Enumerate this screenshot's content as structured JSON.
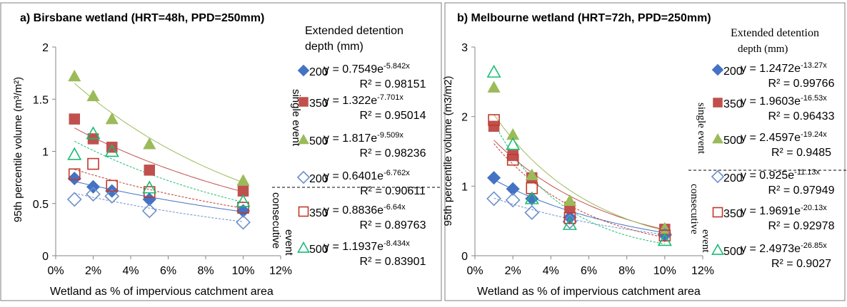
{
  "chart_data": [
    {
      "panel": "a",
      "type": "scatter",
      "title": "a) Birsbane wetland (HRT=48h, PPD=250mm)",
      "xlabel": "Wetland as % of impervious catchment area",
      "ylabel": "95th percentile volume (m³/m²)",
      "xlim": [
        0,
        12
      ],
      "ylim": [
        0,
        2
      ],
      "xticks": [
        "0%",
        "2%",
        "4%",
        "6%",
        "8%",
        "10%",
        "12%"
      ],
      "yticks": [
        "0",
        "0.5",
        "1",
        "1.5",
        "2"
      ],
      "grid": false,
      "legend": {
        "title": "Extended detention depth (mm)",
        "group_labels": [
          "single event",
          "consecutive event"
        ],
        "placement": "right"
      },
      "series": [
        {
          "label": "200",
          "group": "single",
          "marker": "diamond",
          "color": "#4472C4",
          "filled": true,
          "x": [
            1,
            2,
            3,
            5,
            10
          ],
          "y": [
            0.74,
            0.66,
            0.62,
            0.54,
            0.43
          ],
          "fit": {
            "a": 0.7549,
            "b": -5.842
          },
          "equation": "y = 0.7549e",
          "exponent": "-5.842x",
          "r2": "R² = 0.98151"
        },
        {
          "label": "350",
          "group": "single",
          "marker": "square",
          "color": "#C0504D",
          "filled": true,
          "x": [
            1,
            2,
            3,
            5,
            10
          ],
          "y": [
            1.31,
            1.12,
            1.04,
            0.82,
            0.62
          ],
          "fit": {
            "a": 1.322,
            "b": -7.701
          },
          "equation": "y = 1.322e",
          "exponent": "-7.701x",
          "r2": "R² = 0.95014"
        },
        {
          "label": "500",
          "group": "single",
          "marker": "triangle",
          "color": "#9BBB59",
          "filled": true,
          "x": [
            1,
            2,
            3,
            5,
            10
          ],
          "y": [
            1.72,
            1.53,
            1.31,
            1.07,
            0.72
          ],
          "fit": {
            "a": 1.817,
            "b": -9.509
          },
          "equation": "y = 1.817e",
          "exponent": "-9.509x",
          "r2": "R² = 0.98236"
        },
        {
          "label": "200",
          "group": "consecutive",
          "marker": "diamond",
          "color": "#6E8FCB",
          "filled": false,
          "x": [
            1,
            2,
            3,
            5,
            10
          ],
          "y": [
            0.54,
            0.59,
            0.57,
            0.43,
            0.32
          ],
          "fit": {
            "a": 0.6401,
            "b": -6.762
          },
          "equation": "y = 0.6401e",
          "exponent": "-6.762x",
          "r2": "R² = 0.90611"
        },
        {
          "label": "350",
          "group": "consecutive",
          "marker": "square",
          "color": "#C0392B",
          "filled": false,
          "x": [
            1,
            2,
            3,
            5,
            10
          ],
          "y": [
            0.78,
            0.88,
            0.67,
            0.61,
            0.46
          ],
          "fit": {
            "a": 0.8836,
            "b": -6.64
          },
          "equation": "y = 0.8836e",
          "exponent": "-6.64x",
          "r2": "R² = 0.89763"
        },
        {
          "label": "500",
          "group": "consecutive",
          "marker": "triangle",
          "color": "#1ABC74",
          "filled": false,
          "x": [
            1,
            2,
            3,
            5,
            10
          ],
          "y": [
            0.97,
            1.17,
            1.0,
            0.65,
            0.52
          ],
          "fit": {
            "a": 1.1937,
            "b": -8.434
          },
          "equation": "y = 1.1937e",
          "exponent": "-8.434x",
          "r2": "R² = 0.83901"
        }
      ]
    },
    {
      "panel": "b",
      "type": "scatter",
      "title": "b) Melbourne wetland (HRT=72h, PPD=250mm)",
      "xlabel": "Wetland as % of impervious catchment area",
      "ylabel": "95th percentile volume (m3/m2)",
      "xlim": [
        0,
        12
      ],
      "ylim": [
        0,
        3
      ],
      "xticks": [
        "0%",
        "2%",
        "4%",
        "6%",
        "8%",
        "10%",
        "12%"
      ],
      "yticks": [
        "0",
        "1",
        "2",
        "3"
      ],
      "grid": false,
      "legend": {
        "title": "Extended detention depth (mm)",
        "group_labels": [
          "single event",
          "consecutive event"
        ],
        "placement": "right"
      },
      "series": [
        {
          "label": "200",
          "group": "single",
          "marker": "diamond",
          "color": "#4472C4",
          "filled": true,
          "x": [
            1,
            2,
            3,
            5,
            10
          ],
          "y": [
            1.12,
            0.96,
            0.82,
            0.55,
            0.31
          ],
          "fit": {
            "a": 1.2472,
            "b": -13.27
          },
          "equation": "y = 1.2472e",
          "exponent": "-13.27x",
          "r2": "R² = 0.99766"
        },
        {
          "label": "350",
          "group": "single",
          "marker": "square",
          "color": "#C0504D",
          "filled": true,
          "x": [
            1,
            2,
            3,
            5,
            10
          ],
          "y": [
            1.86,
            1.44,
            1.12,
            0.7,
            0.38
          ],
          "fit": {
            "a": 1.9603,
            "b": -16.53
          },
          "equation": "y = 1.9603e",
          "exponent": "-16.53x",
          "r2": "R² = 0.96433"
        },
        {
          "label": "500",
          "group": "single",
          "marker": "triangle",
          "color": "#9BBB59",
          "filled": true,
          "x": [
            1,
            2,
            3,
            5,
            10
          ],
          "y": [
            2.42,
            1.74,
            1.16,
            0.79,
            0.39
          ],
          "fit": {
            "a": 2.4597,
            "b": -19.24
          },
          "equation": "y = 2.4597e",
          "exponent": "-19.24x",
          "r2": "R² = 0.9485"
        },
        {
          "label": "200",
          "group": "consecutive",
          "marker": "diamond",
          "color": "#6E8FCB",
          "filled": false,
          "x": [
            1,
            2,
            3,
            5,
            10
          ],
          "y": [
            0.82,
            0.8,
            0.62,
            0.49,
            0.3
          ],
          "fit": {
            "a": 0.925,
            "b": -11.13
          },
          "equation": "y = 0.925e",
          "exponent": "-11.13x",
          "r2": "R² = 0.97949"
        },
        {
          "label": "350",
          "group": "consecutive",
          "marker": "square",
          "color": "#C0392B",
          "filled": false,
          "x": [
            1,
            2,
            3,
            5,
            10
          ],
          "y": [
            1.95,
            1.38,
            0.97,
            0.54,
            0.29
          ],
          "fit": {
            "a": 1.9691,
            "b": -20.13
          },
          "equation": "y = 1.9691e",
          "exponent": "-20.13x",
          "r2": "R² = 0.92978"
        },
        {
          "label": "500",
          "group": "consecutive",
          "marker": "triangle",
          "color": "#1ABC74",
          "filled": false,
          "x": [
            1,
            2,
            3,
            5,
            10
          ],
          "y": [
            2.64,
            1.6,
            0.82,
            0.45,
            0.22
          ],
          "fit": {
            "a": 2.4973,
            "b": -26.85
          },
          "equation": "y = 2.4973e",
          "exponent": "-26.85x",
          "r2": "R² = 0.9027"
        }
      ]
    }
  ]
}
